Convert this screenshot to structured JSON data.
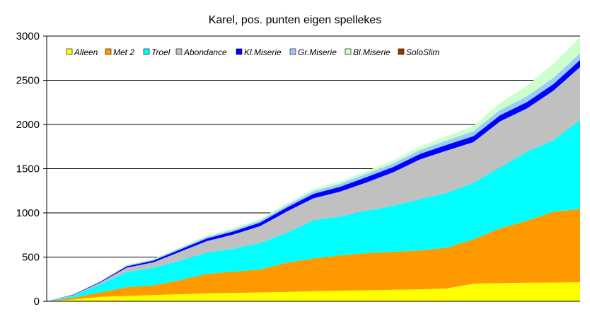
{
  "chart_data": {
    "type": "area",
    "stacked": true,
    "title": "Karel, pos. punten eigen spellekes",
    "xlabel": "",
    "ylabel": "",
    "ylim": [
      0,
      3000
    ],
    "yticks": [
      0,
      500,
      1000,
      1500,
      2000,
      2500,
      3000
    ],
    "grid": true,
    "legend_position": "top-left inside plot",
    "x": [
      0,
      5,
      10,
      15,
      20,
      25,
      30,
      35,
      40,
      45,
      50,
      55,
      60,
      65,
      70,
      75,
      80,
      85,
      90,
      95,
      100
    ],
    "series": [
      {
        "name": "Alleen",
        "color": "#ffff00",
        "values": [
          0,
          20,
          50,
          60,
          70,
          80,
          90,
          95,
          100,
          105,
          115,
          120,
          125,
          130,
          135,
          145,
          200,
          205,
          210,
          212,
          215
        ]
      },
      {
        "name": "Met 2",
        "color": "#ff9900",
        "values": [
          0,
          20,
          50,
          100,
          110,
          160,
          220,
          240,
          260,
          330,
          370,
          400,
          420,
          430,
          440,
          460,
          500,
          620,
          700,
          800,
          830
        ]
      },
      {
        "name": "Troel",
        "color": "#00ffff",
        "values": [
          0,
          20,
          90,
          170,
          200,
          220,
          240,
          260,
          300,
          340,
          430,
          440,
          480,
          520,
          580,
          620,
          640,
          690,
          780,
          810,
          1005
        ]
      },
      {
        "name": "Abondance",
        "color": "#c0c0c0",
        "values": [
          0,
          10,
          20,
          50,
          60,
          100,
          130,
          160,
          190,
          240,
          250,
          280,
          320,
          380,
          450,
          480,
          460,
          520,
          490,
          560,
          600
        ]
      },
      {
        "name": "Kl.Miserie",
        "color": "#0000ff",
        "values": [
          0,
          5,
          8,
          15,
          20,
          25,
          30,
          35,
          40,
          45,
          50,
          55,
          60,
          60,
          62,
          65,
          68,
          70,
          72,
          75,
          80
        ]
      },
      {
        "name": "Gr.Miserie",
        "color": "#99ccff",
        "values": [
          0,
          3,
          6,
          10,
          12,
          15,
          18,
          20,
          22,
          25,
          30,
          35,
          38,
          40,
          45,
          50,
          55,
          60,
          65,
          70,
          75
        ]
      },
      {
        "name": "Bl.Miserie",
        "color": "#ccffcc",
        "values": [
          0,
          3,
          6,
          8,
          10,
          12,
          14,
          18,
          20,
          22,
          25,
          28,
          30,
          35,
          40,
          45,
          60,
          80,
          120,
          160,
          180
        ]
      },
      {
        "name": "SoloSlim",
        "color": "#993300",
        "values": [
          0,
          0,
          0,
          0,
          0,
          0,
          0,
          0,
          0,
          0,
          0,
          0,
          0,
          0,
          0,
          0,
          0,
          0,
          0,
          0,
          0
        ]
      }
    ]
  }
}
